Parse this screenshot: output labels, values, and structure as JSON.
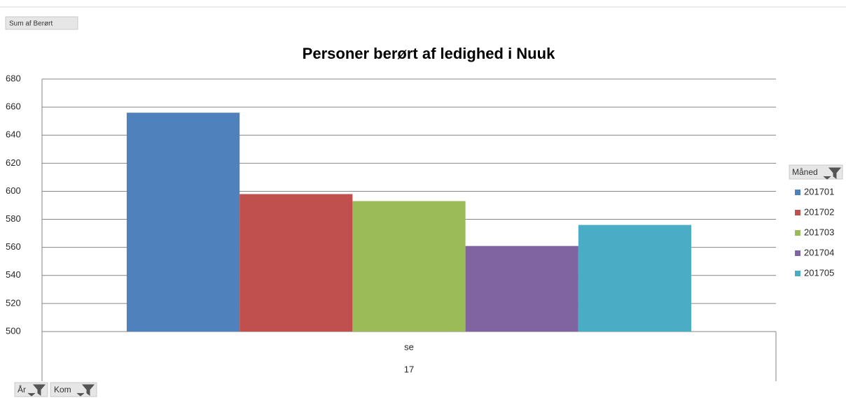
{
  "chart_data": {
    "type": "bar",
    "title": "Personer berørt af ledighed i Nuuk",
    "value_field": "Sum af Berørt",
    "legend_field": "Måned",
    "axis_fields": [
      "År",
      "Kom"
    ],
    "categories": [
      "se"
    ],
    "category_groups": [
      "17"
    ],
    "series": [
      {
        "name": "201701",
        "color": "#4f81bd",
        "values": [
          656
        ]
      },
      {
        "name": "201702",
        "color": "#c0504d",
        "values": [
          598
        ]
      },
      {
        "name": "201703",
        "color": "#9bbb59",
        "values": [
          593
        ]
      },
      {
        "name": "201704",
        "color": "#8064a2",
        "values": [
          561
        ]
      },
      {
        "name": "201705",
        "color": "#4bacc6",
        "values": [
          576
        ]
      }
    ],
    "ylim": [
      500,
      680
    ],
    "yticks": [
      500,
      520,
      540,
      560,
      580,
      600,
      620,
      640,
      660,
      680
    ],
    "grid": true,
    "legend": "right"
  }
}
